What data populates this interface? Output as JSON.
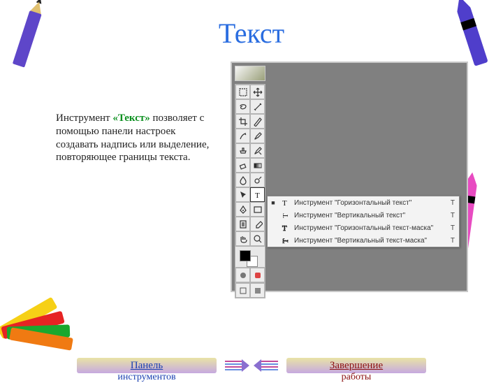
{
  "title": "Текст",
  "paragraph_prefix": "   Инструмент ",
  "paragraph_highlight": "«Текст»",
  "paragraph_suffix": " позволяет с помощью панели настроек создавать надпись или выделение, повторяющее границы текста.",
  "nav": {
    "left_line1": "Панель",
    "left_line2": "инструментов",
    "right_line1": "Завершение",
    "right_line2": "работы"
  },
  "tools": [
    {
      "name": "marquee-rect",
      "active": false
    },
    {
      "name": "move",
      "active": false
    },
    {
      "name": "lasso",
      "active": false
    },
    {
      "name": "magic-wand",
      "active": false
    },
    {
      "name": "crop",
      "active": false
    },
    {
      "name": "slice",
      "active": false
    },
    {
      "name": "healing-brush",
      "active": false
    },
    {
      "name": "brush",
      "active": false
    },
    {
      "name": "clone-stamp",
      "active": false
    },
    {
      "name": "history-brush",
      "active": false
    },
    {
      "name": "eraser",
      "active": false
    },
    {
      "name": "gradient",
      "active": false
    },
    {
      "name": "blur",
      "active": false
    },
    {
      "name": "dodge",
      "active": false
    },
    {
      "name": "path-select",
      "active": false
    },
    {
      "name": "type",
      "active": true
    },
    {
      "name": "pen",
      "active": false
    },
    {
      "name": "shape",
      "active": false
    },
    {
      "name": "notes",
      "active": false
    },
    {
      "name": "eyedropper",
      "active": false
    },
    {
      "name": "hand",
      "active": false
    },
    {
      "name": "zoom",
      "active": false
    }
  ],
  "flyout": [
    {
      "selected": true,
      "icon": "T",
      "label": "Инструмент \"Горизонтальный текст\"",
      "key": "T"
    },
    {
      "selected": false,
      "icon": "T",
      "label": "Инструмент \"Вертикальный текст\"",
      "key": "T"
    },
    {
      "selected": false,
      "icon": "T",
      "label": "Инструмент \"Горизонтальный текст-маска\"",
      "key": "T"
    },
    {
      "selected": false,
      "icon": "T",
      "label": "Инструмент \"Вертикальный текст-маска\"",
      "key": "T"
    }
  ],
  "colors": {
    "title": "#2a6de0",
    "highlight": "#0a8f1e",
    "shot_bg": "#808080",
    "panel_bg": "#e8e8e8"
  }
}
